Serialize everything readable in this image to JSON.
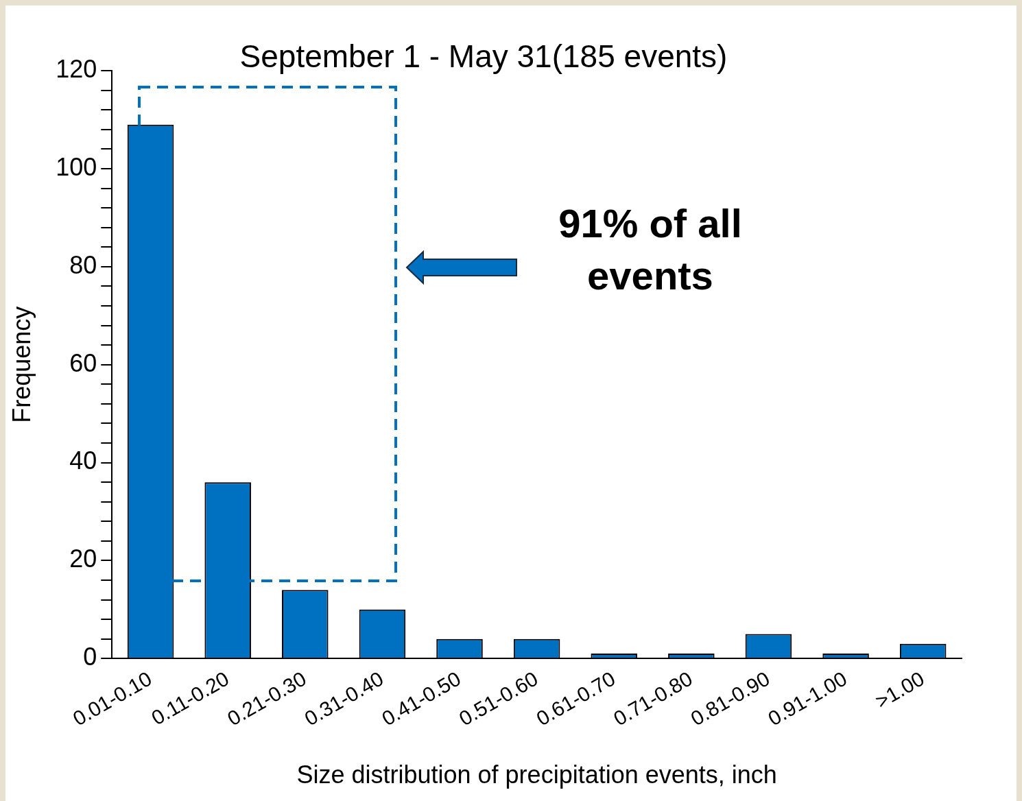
{
  "chart_data": {
    "type": "bar",
    "title": "September 1 - May 31(185 events)",
    "xlabel": "Size distribution of precipitation events, inch",
    "ylabel": "Frequency",
    "categories": [
      "0.01-0.10",
      "0.11-0.20",
      "0.21-0.30",
      "0.31-0.40",
      "0.41-0.50",
      "0.51-0.60",
      "0.61-0.70",
      "0.71-0.80",
      "0.81-0.90",
      "0.91-1.00",
      ">1.00"
    ],
    "values": [
      109,
      36,
      14,
      10,
      4,
      4,
      1,
      1,
      5,
      1,
      3
    ],
    "color": "#0070c0",
    "ylim": [
      0,
      120
    ],
    "yticks": [
      0,
      {
        "value": 4,
        "label": null
      },
      {
        "value": 8,
        "label": null
      },
      {
        "value": 12,
        "label": null
      },
      {
        "value": 16,
        "label": null
      },
      20,
      {
        "value": 24,
        "label": null
      },
      {
        "value": 28,
        "label": null
      },
      {
        "value": 32,
        "label": null
      },
      {
        "value": 36,
        "label": null
      },
      40,
      {
        "value": 44,
        "label": null
      },
      {
        "value": 48,
        "label": null
      },
      {
        "value": 52,
        "label": null
      },
      {
        "value": 56,
        "label": null
      },
      60,
      {
        "value": 64,
        "label": null
      },
      {
        "value": 68,
        "label": null
      },
      {
        "value": 72,
        "label": null
      },
      {
        "value": 76,
        "label": null
      },
      80,
      {
        "value": 84,
        "label": null
      },
      {
        "value": 88,
        "label": null
      },
      {
        "value": 92,
        "label": null
      },
      {
        "value": 96,
        "label": null
      },
      100,
      {
        "value": 104,
        "label": null
      },
      {
        "value": 108,
        "label": null
      },
      {
        "value": 112,
        "label": null
      },
      {
        "value": 116,
        "label": null
      },
      120
    ],
    "annotations": [
      "91% of all events"
    ],
    "grid": false,
    "legend": false
  }
}
